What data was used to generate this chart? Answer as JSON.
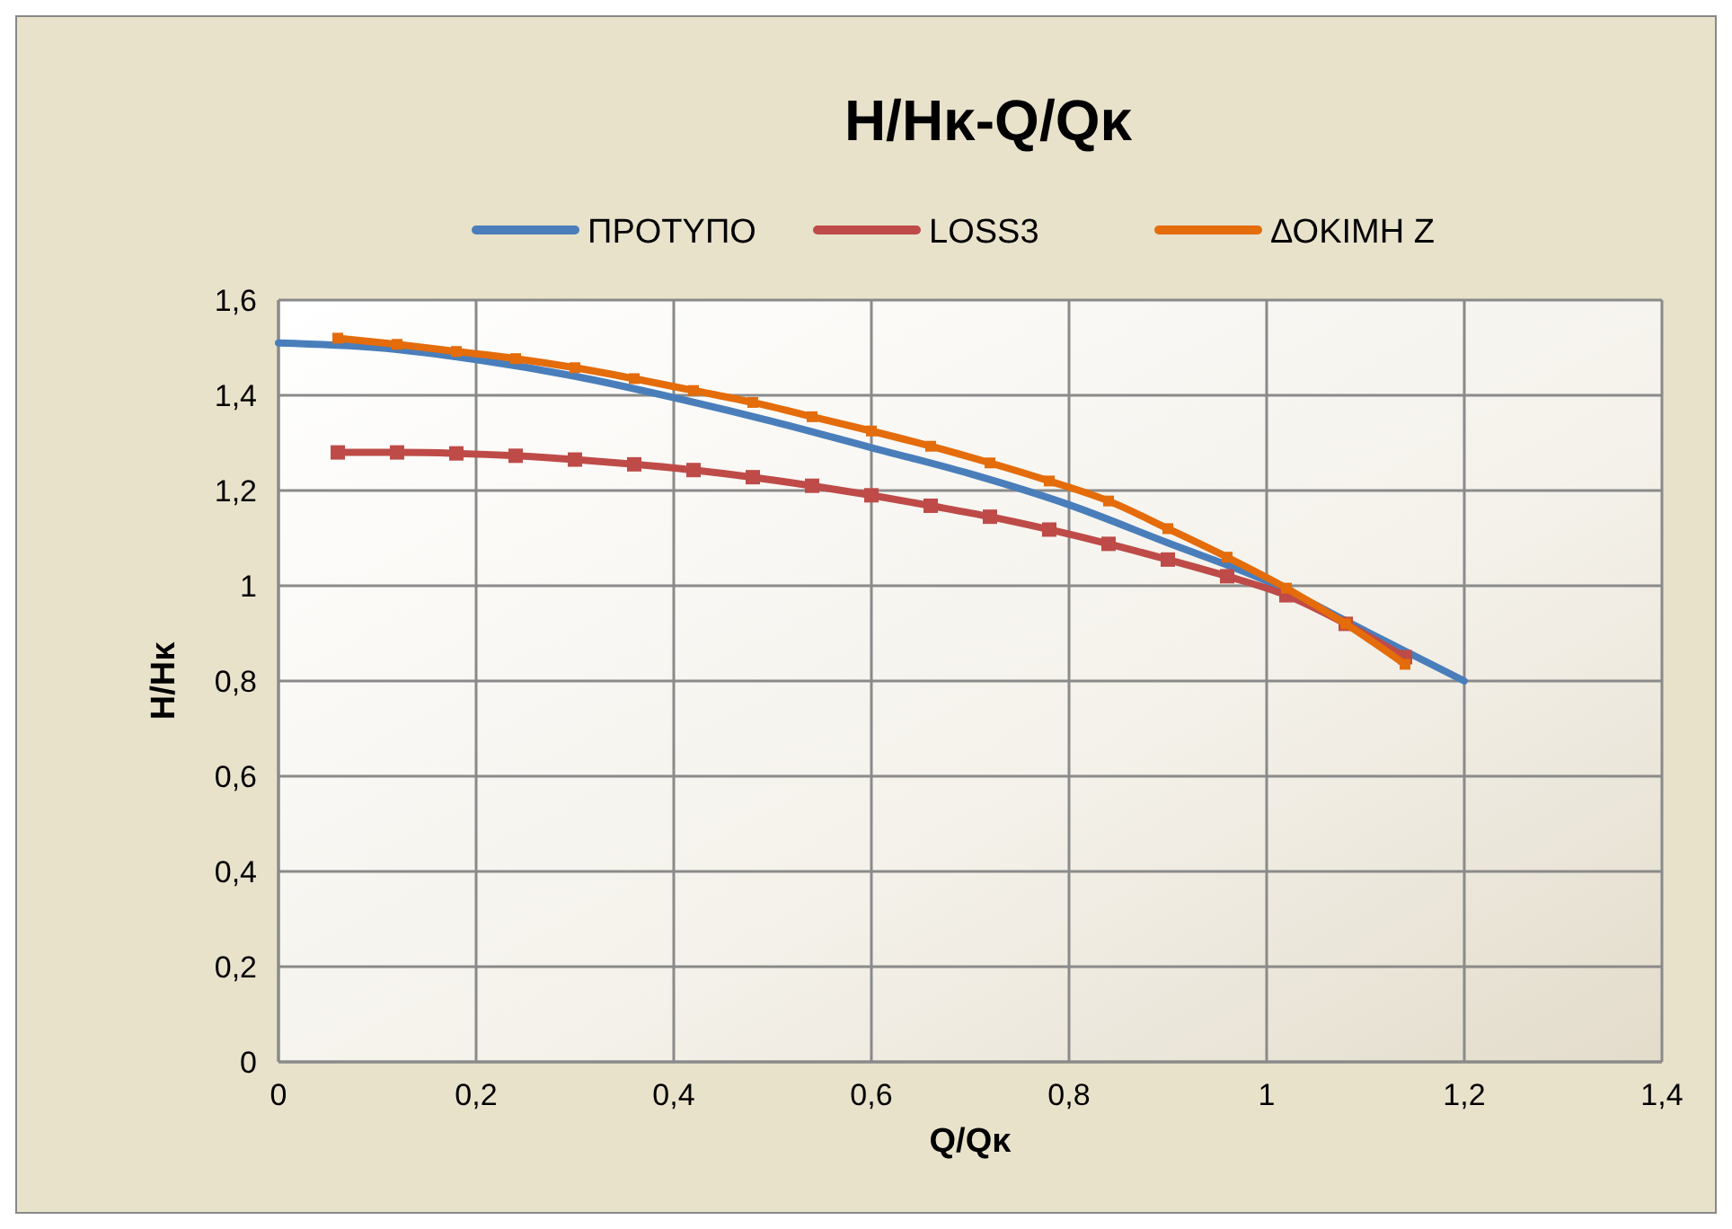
{
  "chart_data": {
    "type": "line",
    "title": "H/Hκ-Q/Qκ",
    "xlabel": "Q/Qκ",
    "ylabel": "H/Hκ",
    "xlim": [
      0,
      1.4
    ],
    "xticks": [
      0,
      {
        "value": 0.2,
        "label": "0,2"
      },
      {
        "value": 0.4,
        "label": "0,4"
      },
      {
        "value": 0.6,
        "label": "0,6"
      },
      {
        "value": 0.8,
        "label": "0,8"
      },
      1,
      {
        "value": 1.2,
        "label": "1,2"
      },
      {
        "value": 1.4,
        "label": "1,4"
      }
    ],
    "ylim": [
      0,
      1.6
    ],
    "yticks": [
      0,
      {
        "value": 0.2,
        "label": "0,2"
      },
      {
        "value": 0.4,
        "label": "0,4"
      },
      {
        "value": 0.6,
        "label": "0,6"
      },
      {
        "value": 0.8,
        "label": "0,8"
      },
      1,
      {
        "value": 1.2,
        "label": "1,2"
      },
      {
        "value": 1.4,
        "label": "1,4"
      },
      {
        "value": 1.6,
        "label": "1,6"
      }
    ],
    "grid": true,
    "legend": "top",
    "series": [
      {
        "name": "ΠΡΟΤΥΠΟ",
        "color": "#4a7ebb",
        "marker": "none",
        "x": [
          0,
          0.1,
          0.2,
          0.3,
          0.4,
          0.5,
          0.6,
          0.7,
          0.8,
          0.9,
          1.0,
          1.1,
          1.2
        ],
        "values": [
          1.51,
          1.5,
          1.475,
          1.44,
          1.395,
          1.345,
          1.29,
          1.235,
          1.17,
          1.09,
          1.01,
          0.905,
          0.8
        ]
      },
      {
        "name": "LOSS3",
        "color": "#be4b48",
        "marker": "square",
        "x": [
          0.06,
          0.12,
          0.18,
          0.24,
          0.3,
          0.36,
          0.42,
          0.48,
          0.54,
          0.6,
          0.66,
          0.72,
          0.78,
          0.84,
          0.9,
          0.96,
          1.02,
          1.08,
          1.14
        ],
        "values": [
          1.28,
          1.28,
          1.278,
          1.273,
          1.265,
          1.255,
          1.243,
          1.228,
          1.21,
          1.19,
          1.168,
          1.145,
          1.118,
          1.088,
          1.055,
          1.02,
          0.98,
          0.92,
          0.85
        ]
      },
      {
        "name": "ΔΟΚΙΜΗ Ζ",
        "color": "#e46c0a",
        "marker": "square",
        "x": [
          0.06,
          0.12,
          0.18,
          0.24,
          0.3,
          0.36,
          0.42,
          0.48,
          0.54,
          0.6,
          0.66,
          0.72,
          0.78,
          0.84,
          0.9,
          0.96,
          1.02,
          1.08,
          1.14
        ],
        "values": [
          1.52,
          1.507,
          1.492,
          1.477,
          1.458,
          1.435,
          1.41,
          1.385,
          1.355,
          1.325,
          1.293,
          1.258,
          1.22,
          1.178,
          1.12,
          1.06,
          0.995,
          0.92,
          0.835
        ]
      }
    ]
  }
}
